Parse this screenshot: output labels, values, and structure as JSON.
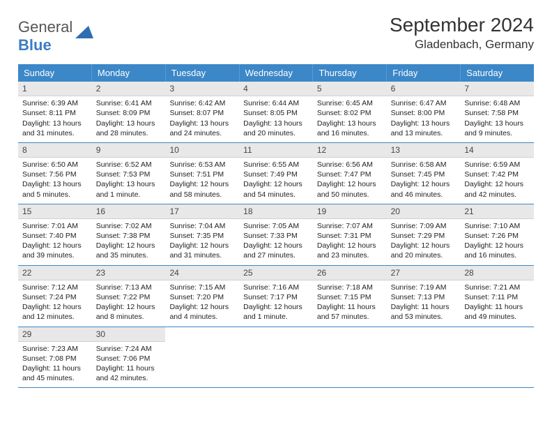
{
  "logo": {
    "part1": "General",
    "part2": "Blue"
  },
  "title": "September 2024",
  "location": "Gladenbach, Germany",
  "colors": {
    "header_bg": "#3b87c8",
    "header_text": "#ffffff",
    "daynum_bg": "#e8e8e8",
    "rule": "#3b87c8"
  },
  "dayNames": [
    "Sunday",
    "Monday",
    "Tuesday",
    "Wednesday",
    "Thursday",
    "Friday",
    "Saturday"
  ],
  "weeks": [
    [
      {
        "n": "1",
        "sr": "Sunrise: 6:39 AM",
        "ss": "Sunset: 8:11 PM",
        "dl": "Daylight: 13 hours and 31 minutes."
      },
      {
        "n": "2",
        "sr": "Sunrise: 6:41 AM",
        "ss": "Sunset: 8:09 PM",
        "dl": "Daylight: 13 hours and 28 minutes."
      },
      {
        "n": "3",
        "sr": "Sunrise: 6:42 AM",
        "ss": "Sunset: 8:07 PM",
        "dl": "Daylight: 13 hours and 24 minutes."
      },
      {
        "n": "4",
        "sr": "Sunrise: 6:44 AM",
        "ss": "Sunset: 8:05 PM",
        "dl": "Daylight: 13 hours and 20 minutes."
      },
      {
        "n": "5",
        "sr": "Sunrise: 6:45 AM",
        "ss": "Sunset: 8:02 PM",
        "dl": "Daylight: 13 hours and 16 minutes."
      },
      {
        "n": "6",
        "sr": "Sunrise: 6:47 AM",
        "ss": "Sunset: 8:00 PM",
        "dl": "Daylight: 13 hours and 13 minutes."
      },
      {
        "n": "7",
        "sr": "Sunrise: 6:48 AM",
        "ss": "Sunset: 7:58 PM",
        "dl": "Daylight: 13 hours and 9 minutes."
      }
    ],
    [
      {
        "n": "8",
        "sr": "Sunrise: 6:50 AM",
        "ss": "Sunset: 7:56 PM",
        "dl": "Daylight: 13 hours and 5 minutes."
      },
      {
        "n": "9",
        "sr": "Sunrise: 6:52 AM",
        "ss": "Sunset: 7:53 PM",
        "dl": "Daylight: 13 hours and 1 minute."
      },
      {
        "n": "10",
        "sr": "Sunrise: 6:53 AM",
        "ss": "Sunset: 7:51 PM",
        "dl": "Daylight: 12 hours and 58 minutes."
      },
      {
        "n": "11",
        "sr": "Sunrise: 6:55 AM",
        "ss": "Sunset: 7:49 PM",
        "dl": "Daylight: 12 hours and 54 minutes."
      },
      {
        "n": "12",
        "sr": "Sunrise: 6:56 AM",
        "ss": "Sunset: 7:47 PM",
        "dl": "Daylight: 12 hours and 50 minutes."
      },
      {
        "n": "13",
        "sr": "Sunrise: 6:58 AM",
        "ss": "Sunset: 7:45 PM",
        "dl": "Daylight: 12 hours and 46 minutes."
      },
      {
        "n": "14",
        "sr": "Sunrise: 6:59 AM",
        "ss": "Sunset: 7:42 PM",
        "dl": "Daylight: 12 hours and 42 minutes."
      }
    ],
    [
      {
        "n": "15",
        "sr": "Sunrise: 7:01 AM",
        "ss": "Sunset: 7:40 PM",
        "dl": "Daylight: 12 hours and 39 minutes."
      },
      {
        "n": "16",
        "sr": "Sunrise: 7:02 AM",
        "ss": "Sunset: 7:38 PM",
        "dl": "Daylight: 12 hours and 35 minutes."
      },
      {
        "n": "17",
        "sr": "Sunrise: 7:04 AM",
        "ss": "Sunset: 7:35 PM",
        "dl": "Daylight: 12 hours and 31 minutes."
      },
      {
        "n": "18",
        "sr": "Sunrise: 7:05 AM",
        "ss": "Sunset: 7:33 PM",
        "dl": "Daylight: 12 hours and 27 minutes."
      },
      {
        "n": "19",
        "sr": "Sunrise: 7:07 AM",
        "ss": "Sunset: 7:31 PM",
        "dl": "Daylight: 12 hours and 23 minutes."
      },
      {
        "n": "20",
        "sr": "Sunrise: 7:09 AM",
        "ss": "Sunset: 7:29 PM",
        "dl": "Daylight: 12 hours and 20 minutes."
      },
      {
        "n": "21",
        "sr": "Sunrise: 7:10 AM",
        "ss": "Sunset: 7:26 PM",
        "dl": "Daylight: 12 hours and 16 minutes."
      }
    ],
    [
      {
        "n": "22",
        "sr": "Sunrise: 7:12 AM",
        "ss": "Sunset: 7:24 PM",
        "dl": "Daylight: 12 hours and 12 minutes."
      },
      {
        "n": "23",
        "sr": "Sunrise: 7:13 AM",
        "ss": "Sunset: 7:22 PM",
        "dl": "Daylight: 12 hours and 8 minutes."
      },
      {
        "n": "24",
        "sr": "Sunrise: 7:15 AM",
        "ss": "Sunset: 7:20 PM",
        "dl": "Daylight: 12 hours and 4 minutes."
      },
      {
        "n": "25",
        "sr": "Sunrise: 7:16 AM",
        "ss": "Sunset: 7:17 PM",
        "dl": "Daylight: 12 hours and 1 minute."
      },
      {
        "n": "26",
        "sr": "Sunrise: 7:18 AM",
        "ss": "Sunset: 7:15 PM",
        "dl": "Daylight: 11 hours and 57 minutes."
      },
      {
        "n": "27",
        "sr": "Sunrise: 7:19 AM",
        "ss": "Sunset: 7:13 PM",
        "dl": "Daylight: 11 hours and 53 minutes."
      },
      {
        "n": "28",
        "sr": "Sunrise: 7:21 AM",
        "ss": "Sunset: 7:11 PM",
        "dl": "Daylight: 11 hours and 49 minutes."
      }
    ],
    [
      {
        "n": "29",
        "sr": "Sunrise: 7:23 AM",
        "ss": "Sunset: 7:08 PM",
        "dl": "Daylight: 11 hours and 45 minutes."
      },
      {
        "n": "30",
        "sr": "Sunrise: 7:24 AM",
        "ss": "Sunset: 7:06 PM",
        "dl": "Daylight: 11 hours and 42 minutes."
      },
      null,
      null,
      null,
      null,
      null
    ]
  ]
}
